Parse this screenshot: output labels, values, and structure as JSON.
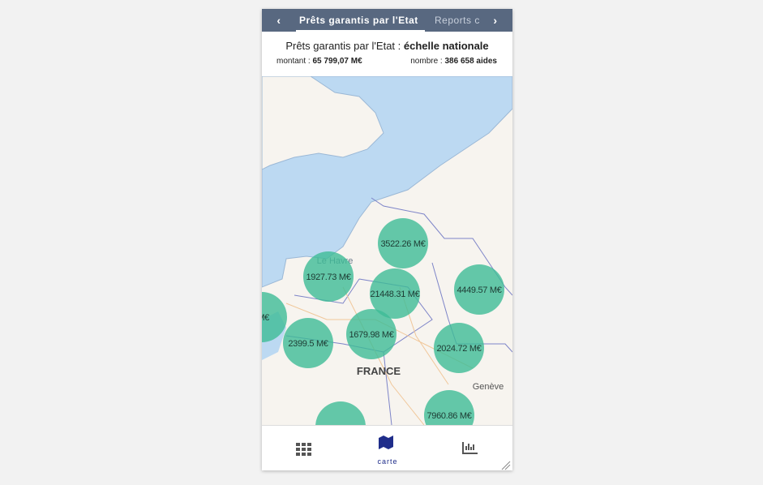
{
  "tabs": [
    "Prêts garantis par l'Etat",
    "Reports c"
  ],
  "header": {
    "title": "Prêts garantis par l'Etat :",
    "scope": "échelle nationale",
    "amount_label": "montant :",
    "amount": "65 799,07 M€",
    "count_label": "nombre :",
    "count": "386 658 aides"
  },
  "map": {
    "places": [
      "Le Havre",
      "FRANCE",
      "Genève"
    ],
    "clusters": [
      "3522.26 M€",
      "1927.73 M€",
      "21448.31 M€",
      "4449.57 M€",
      "M€",
      "2399.5 M€",
      "1679.98 M€",
      "2024.72 M€",
      "7960.86 M€"
    ]
  },
  "nav": {
    "active": "carte"
  }
}
